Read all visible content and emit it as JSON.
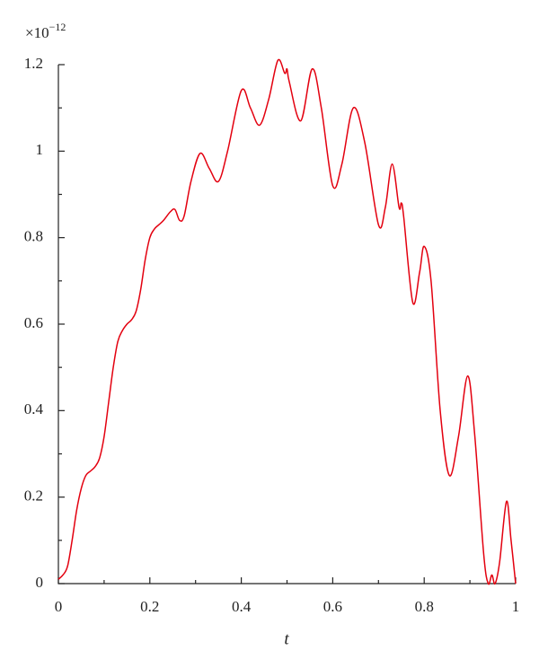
{
  "chart_data": {
    "type": "line",
    "x_label": "t",
    "multiplier": {
      "base": "×10",
      "exponent": "−12"
    },
    "xlim": [
      0,
      1
    ],
    "ylim": [
      0,
      1.2
    ],
    "xticks": [
      0,
      0.2,
      0.4,
      0.6,
      0.8,
      1
    ],
    "yticks": [
      0,
      0.2,
      0.4,
      0.6,
      0.8,
      1,
      1.2
    ],
    "xminorticks": [
      0.1,
      0.3,
      0.5,
      0.7,
      0.9
    ],
    "yminorticks": [
      0.1,
      0.3,
      0.5,
      0.7,
      0.9,
      1.1
    ],
    "series": [
      {
        "color": "#e3000f",
        "x": [
          0,
          0.01,
          0.02,
          0.03,
          0.04,
          0.05,
          0.06,
          0.07,
          0.08,
          0.09,
          0.1,
          0.11,
          0.12,
          0.13,
          0.14,
          0.15,
          0.16,
          0.17,
          0.18,
          0.19,
          0.2,
          0.21,
          0.22,
          0.23,
          0.245,
          0.255,
          0.265,
          0.275,
          0.29,
          0.31,
          0.33,
          0.35,
          0.37,
          0.4,
          0.42,
          0.44,
          0.46,
          0.48,
          0.495,
          0.5,
          0.505,
          0.53,
          0.555,
          0.575,
          0.6,
          0.62,
          0.645,
          0.67,
          0.7,
          0.715,
          0.73,
          0.745,
          0.75,
          0.755,
          0.775,
          0.79,
          0.8,
          0.815,
          0.835,
          0.855,
          0.875,
          0.895,
          0.91,
          0.93,
          0.94,
          0.948,
          0.955,
          0.965,
          0.98,
          0.99,
          1.0
        ],
        "values": [
          0.01,
          0.02,
          0.04,
          0.1,
          0.17,
          0.22,
          0.25,
          0.26,
          0.27,
          0.29,
          0.34,
          0.42,
          0.5,
          0.56,
          0.585,
          0.6,
          0.61,
          0.63,
          0.68,
          0.75,
          0.8,
          0.82,
          0.83,
          0.84,
          0.86,
          0.865,
          0.84,
          0.85,
          0.93,
          0.995,
          0.96,
          0.93,
          1.0,
          1.14,
          1.1,
          1.06,
          1.12,
          1.21,
          1.18,
          1.19,
          1.16,
          1.07,
          1.19,
          1.1,
          0.92,
          0.97,
          1.1,
          1.02,
          0.83,
          0.87,
          0.97,
          0.87,
          0.88,
          0.85,
          0.65,
          0.72,
          0.78,
          0.7,
          0.4,
          0.25,
          0.34,
          0.48,
          0.35,
          0.07,
          0,
          0.02,
          0,
          0.05,
          0.19,
          0.1,
          0
        ]
      }
    ]
  }
}
